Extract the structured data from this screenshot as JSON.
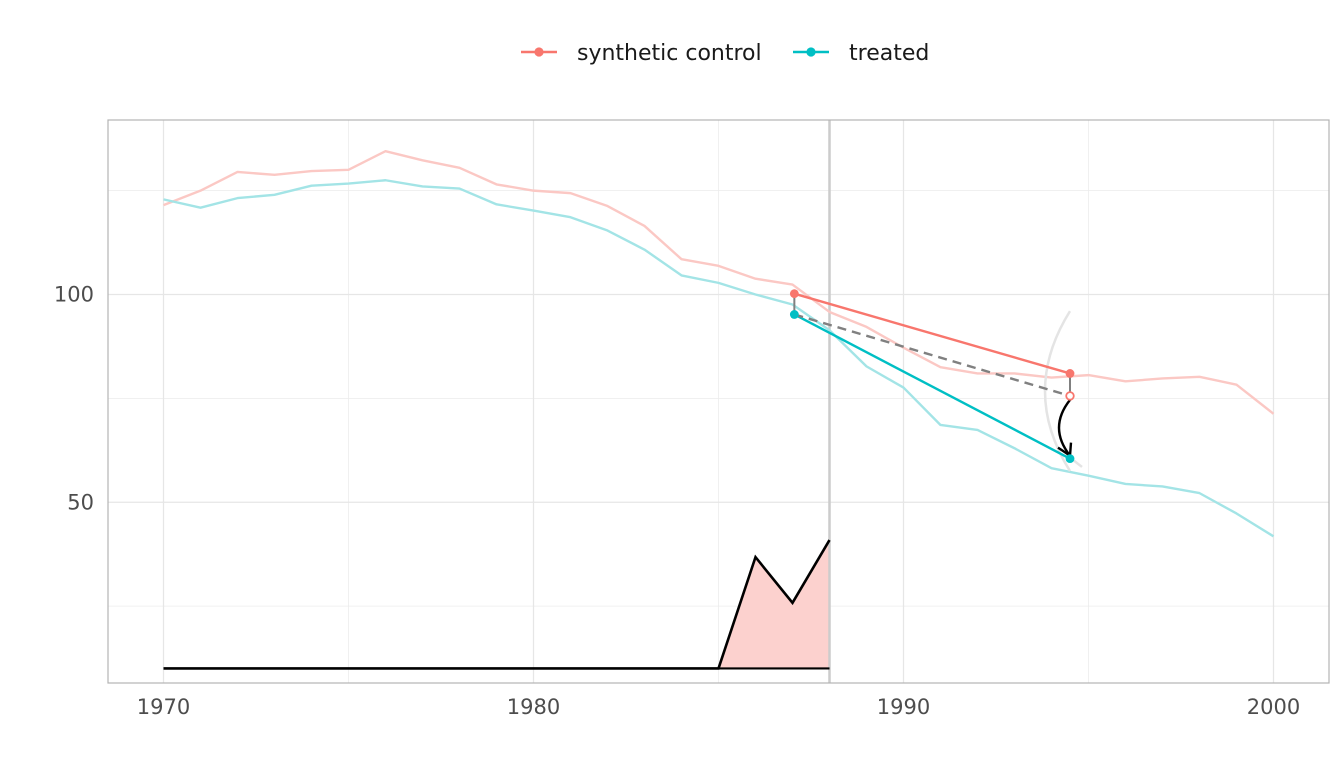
{
  "chart_data": {
    "type": "line",
    "title": "",
    "xlabel": "",
    "ylabel": "",
    "xlim": [
      1968.5,
      2001.5
    ],
    "ylim": [
      6.5,
      142
    ],
    "x_major_ticks": [
      1970,
      1980,
      1990,
      2000
    ],
    "x_minor_ticks": [
      1975,
      1985,
      1995
    ],
    "y_major_ticks": [
      50,
      100
    ],
    "y_minor_ticks": [
      25,
      75,
      125
    ],
    "x_tick_labels": [
      "1970",
      "1980",
      "1990",
      "2000"
    ],
    "y_tick_labels": [
      "50",
      "100"
    ],
    "grid": true,
    "legend_position": "top",
    "colors": {
      "synthetic": "#F8766D",
      "treated": "#00BFC4",
      "faded_synthetic": "#FBC8C4",
      "faded_treated": "#A3E4E6",
      "dashed": "#808080",
      "area_fill": "#FCD1CE",
      "panel_border": "#b3b3b3",
      "grid": "#e6e6e6",
      "vline": "#cccccc"
    },
    "legend": [
      {
        "label": "synthetic control",
        "color": "#F8766D"
      },
      {
        "label": "treated",
        "color": "#00BFC4"
      }
    ],
    "x": [
      1970,
      1971,
      1972,
      1973,
      1974,
      1975,
      1976,
      1977,
      1978,
      1979,
      1980,
      1981,
      1982,
      1983,
      1984,
      1985,
      1986,
      1987,
      1988,
      1989,
      1990,
      1991,
      1992,
      1993,
      1994,
      1995,
      1996,
      1997,
      1998,
      1999,
      2000
    ],
    "series": [
      {
        "name": "synthetic control",
        "values": [
          121.5,
          125,
          129.5,
          128.8,
          129.7,
          130,
          134.5,
          132.3,
          130.5,
          126.5,
          125,
          124.4,
          121.3,
          116.5,
          108.5,
          106.9,
          103.8,
          102.4,
          95.8,
          92.2,
          87.2,
          82.5,
          81,
          81,
          80,
          80.6,
          79.1,
          79.8,
          80.2,
          78.3,
          71.3
        ]
      },
      {
        "name": "treated",
        "values": [
          122.9,
          120.9,
          123.2,
          124,
          126.2,
          126.7,
          127.5,
          126,
          125.5,
          121.7,
          120.2,
          118.6,
          115.4,
          110.8,
          104.6,
          102.8,
          100,
          97.6,
          91.4,
          82.7,
          77.6,
          68.6,
          67.4,
          63,
          58.2,
          56.4,
          54.4,
          53.8,
          52.2,
          47.3,
          41.8
        ]
      }
    ],
    "treatment_year": 1988,
    "highlight_segments": {
      "synthetic": {
        "x": [
          1987.05,
          1994.5
        ],
        "y": [
          100.2,
          81
        ]
      },
      "treated": {
        "x": [
          1987.05,
          1994.5
        ],
        "y": [
          95.2,
          60.5
        ]
      },
      "dashed": {
        "x": [
          1987.05,
          1994.5
        ],
        "y": [
          95.2,
          75.6
        ]
      },
      "arrow": {
        "x": [
          1994.5,
          1994.5
        ],
        "y": [
          75.6,
          60.5
        ]
      }
    },
    "lower_line": {
      "x": [
        1970,
        1985,
        1986,
        1987,
        1988
      ],
      "y": [
        10,
        10,
        36.8,
        25.8,
        40.9
      ],
      "baseline": 10
    }
  }
}
